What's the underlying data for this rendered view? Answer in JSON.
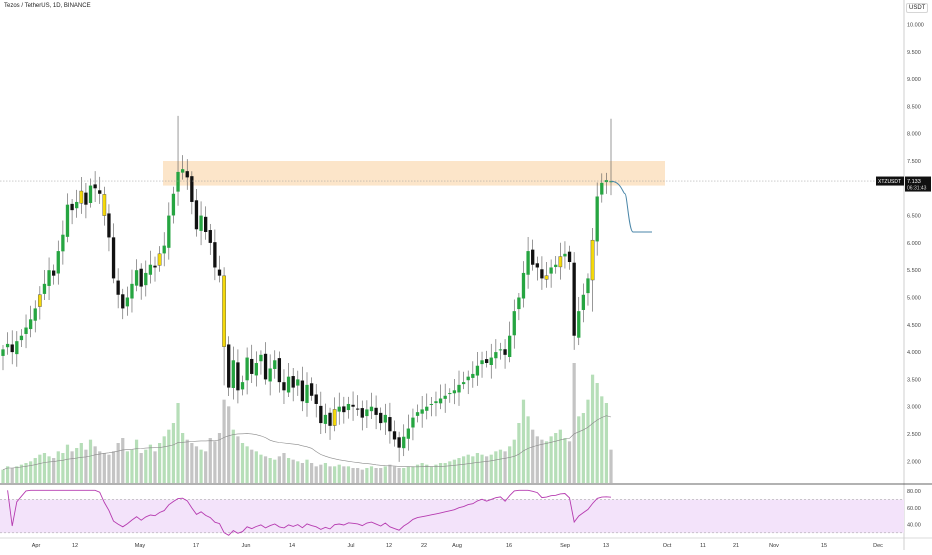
{
  "header": {
    "title": "Tezos / TetherUS, 1D, BINANCE",
    "currency": "USDT"
  },
  "price_tag": {
    "symbol": "XTZUSDT",
    "price": "7.133",
    "countdown": "06:31:43"
  },
  "colors": {
    "up": "#26a541",
    "down": "#111111",
    "highlight": "#f5d90a",
    "zone": "#fbe0c0",
    "projection": "#4a86a8",
    "rsi_line": "#b63bb0",
    "rsi_fill": "#f3e3fa",
    "vol_up": "#b6deb8",
    "vol_down": "#c4c4c4"
  },
  "chart_data": [
    {
      "type": "candlestick",
      "title": "Tezos / TetherUS, 1D, BINANCE",
      "x_tick_labels": [
        "Apr",
        "12",
        "May",
        "17",
        "Jun",
        "14",
        "Jul",
        "12",
        "22",
        "Aug",
        "16",
        "Sep",
        "13",
        "Oct",
        "11",
        "21",
        "Nov",
        "15",
        "Dec"
      ],
      "y_tick_labels": [
        "10.000",
        "9.500",
        "9.000",
        "8.500",
        "8.000",
        "7.500",
        "7.000",
        "6.500",
        "6.000",
        "5.500",
        "5.000",
        "4.500",
        "4.000",
        "3.500",
        "3.000",
        "2.500",
        "2.000"
      ],
      "y_ticks": [
        10.0,
        9.5,
        9.0,
        8.5,
        8.0,
        7.5,
        7.0,
        6.5,
        6.0,
        5.5,
        5.0,
        4.5,
        4.0,
        3.5,
        3.0,
        2.5,
        2.0
      ],
      "ylim": [
        1.55,
        10.55
      ],
      "resistance_zone": [
        7.05,
        7.5
      ],
      "projection": [
        [
          7.13,
          7.13
        ],
        [
          6.9,
          6.2
        ],
        [
          6.2,
          6.2
        ]
      ],
      "close_series": [
        4.05,
        4.15,
        4.0,
        4.2,
        4.3,
        4.45,
        4.6,
        4.8,
        5.05,
        5.25,
        5.5,
        5.4,
        5.85,
        6.15,
        6.7,
        6.6,
        6.75,
        6.95,
        6.7,
        7.05,
        7.0,
        6.9,
        6.5,
        6.1,
        5.35,
        5.05,
        4.8,
        5.0,
        5.25,
        5.5,
        5.2,
        5.45,
        5.6,
        5.55,
        5.8,
        5.95,
        6.5,
        6.9,
        7.3,
        7.35,
        7.2,
        6.75,
        6.25,
        6.5,
        6.2,
        6.0,
        5.55,
        5.4,
        4.1,
        3.35,
        3.85,
        3.3,
        3.45,
        3.9,
        3.6,
        3.8,
        3.95,
        3.5,
        3.7,
        3.85,
        3.45,
        3.3,
        3.55,
        3.35,
        3.5,
        3.1,
        3.4,
        3.2,
        3.05,
        2.7,
        2.85,
        2.65,
        2.95,
        3.0,
        2.9,
        3.05,
        3.0,
        2.95,
        2.8,
        2.95,
        3.0,
        2.85,
        2.7,
        2.85,
        2.55,
        2.4,
        2.25,
        2.45,
        2.6,
        2.8,
        2.9,
        2.95,
        3.0,
        3.05,
        3.1,
        3.15,
        3.2,
        3.25,
        3.3,
        3.4,
        3.45,
        3.55,
        3.6,
        3.75,
        3.85,
        3.8,
        3.9,
        4.0,
        4.05,
        3.95,
        4.3,
        4.75,
        5.0,
        5.45,
        5.85,
        5.6,
        5.55,
        5.35,
        5.4,
        5.55,
        5.6,
        5.75,
        5.8,
        5.65,
        4.3,
        4.75,
        5.05,
        5.35,
        6.05,
        6.85,
        7.1,
        7.15,
        7.13
      ],
      "volume_series": [
        0.8,
        1.0,
        0.9,
        1.0,
        1.1,
        1.2,
        1.3,
        1.5,
        1.7,
        1.8,
        1.6,
        1.5,
        1.9,
        1.8,
        2.3,
        1.9,
        2.1,
        2.4,
        2.0,
        2.6,
        2.2,
        1.9,
        1.8,
        1.7,
        1.9,
        2.4,
        2.7,
        1.9,
        2.0,
        2.6,
        1.8,
        2.0,
        2.3,
        1.9,
        2.4,
        2.8,
        3.2,
        3.6,
        4.8,
        3.0,
        2.6,
        2.4,
        2.2,
        2.0,
        1.9,
        2.7,
        2.5,
        3.0,
        5.0,
        4.6,
        3.2,
        2.8,
        2.4,
        2.2,
        2.0,
        1.9,
        1.7,
        1.6,
        1.5,
        1.4,
        1.6,
        1.8,
        1.5,
        1.4,
        1.3,
        1.2,
        1.4,
        1.2,
        1.0,
        1.1,
        1.2,
        1.0,
        1.0,
        1.1,
        1.0,
        1.0,
        0.9,
        0.9,
        0.8,
        0.9,
        1.0,
        0.9,
        0.9,
        1.0,
        1.1,
        1.0,
        0.9,
        0.9,
        1.0,
        1.0,
        1.1,
        1.2,
        1.1,
        1.0,
        1.1,
        1.2,
        1.2,
        1.3,
        1.4,
        1.5,
        1.6,
        1.7,
        1.6,
        1.8,
        1.7,
        1.6,
        1.7,
        1.9,
        2.0,
        1.9,
        2.2,
        2.6,
        3.6,
        5.0,
        4.0,
        3.2,
        2.8,
        2.6,
        2.5,
        2.8,
        3.0,
        3.2,
        2.7,
        2.5,
        7.2,
        4.0,
        4.2,
        5.0,
        6.5,
        6.0,
        5.2,
        4.8,
        2.0
      ],
      "rsi": {
        "upper": 70,
        "lower": 30,
        "y_tick_labels": [
          "80.00",
          "60.00",
          "40.00"
        ],
        "y_ticks": [
          80,
          60,
          40
        ],
        "ylim": [
          25,
          85
        ]
      }
    }
  ]
}
